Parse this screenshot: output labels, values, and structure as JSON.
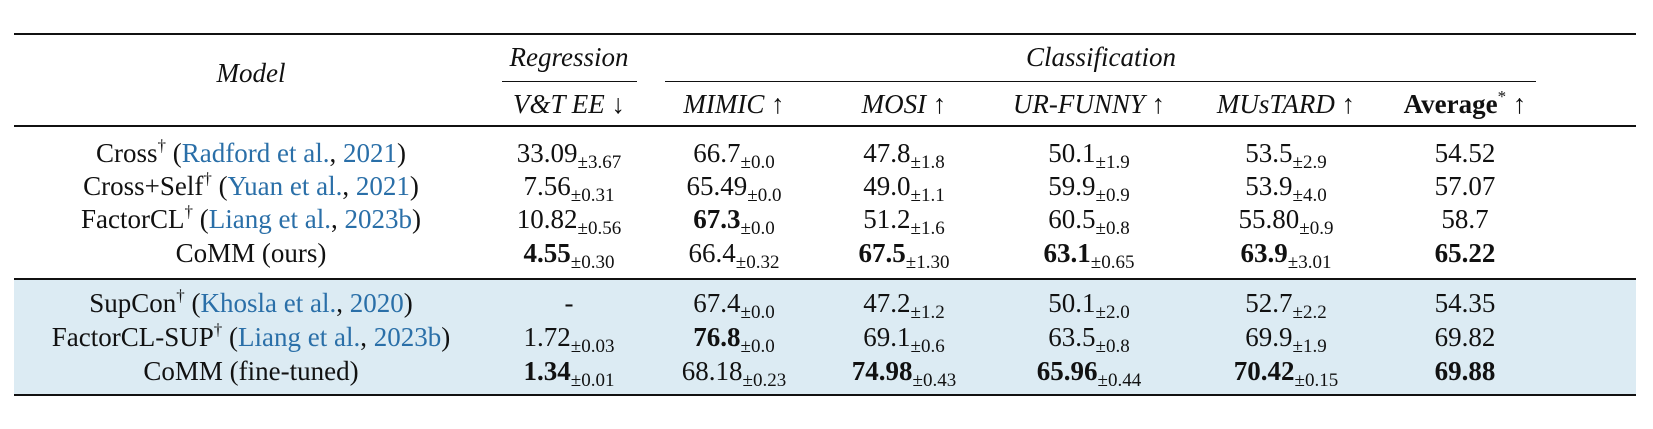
{
  "header": {
    "model": "Model",
    "regression": "Regression",
    "classification": "Classification",
    "columns": [
      "V&T EE ↓",
      "MIMIC ↑",
      "MOSI ↑",
      "UR-FUNNY ↑",
      "MUsTARD ↑"
    ],
    "average": "Average",
    "average_mark": "*",
    "average_arrow": " ↑"
  },
  "group1": [
    {
      "name": "Cross",
      "dagger": "†",
      "cite_author": "Radford et al.",
      "cite_year": "2021",
      "cells": [
        {
          "v": "33.09",
          "s": "±3.67",
          "b": false
        },
        {
          "v": "66.7",
          "s": "±0.0",
          "b": false
        },
        {
          "v": "47.8",
          "s": "±1.8",
          "b": false
        },
        {
          "v": "50.1",
          "s": "±1.9",
          "b": false
        },
        {
          "v": "53.5",
          "s": "±2.9",
          "b": false
        }
      ],
      "avg": "54.52",
      "avg_bold": false
    },
    {
      "name": "Cross+Self",
      "dagger": "†",
      "cite_author": "Yuan et al.",
      "cite_year": "2021",
      "cells": [
        {
          "v": "7.56",
          "s": "±0.31",
          "b": false
        },
        {
          "v": "65.49",
          "s": "±0.0",
          "b": false
        },
        {
          "v": "49.0",
          "s": "±1.1",
          "b": false
        },
        {
          "v": "59.9",
          "s": "±0.9",
          "b": false
        },
        {
          "v": "53.9",
          "s": "±4.0",
          "b": false
        }
      ],
      "avg": "57.07",
      "avg_bold": false
    },
    {
      "name": "FactorCL",
      "dagger": "†",
      "cite_author": "Liang et al.",
      "cite_year": "2023b",
      "cells": [
        {
          "v": "10.82",
          "s": "±0.56",
          "b": false
        },
        {
          "v": "67.3",
          "s": "±0.0",
          "b": true
        },
        {
          "v": "51.2",
          "s": "±1.6",
          "b": false
        },
        {
          "v": "60.5",
          "s": "±0.8",
          "b": false
        },
        {
          "v": "55.80",
          "s": "±0.9",
          "b": false
        }
      ],
      "avg": "58.7",
      "avg_bold": false
    },
    {
      "name": "CoMM (ours)",
      "dagger": "",
      "cite_author": "",
      "cite_year": "",
      "cells": [
        {
          "v": "4.55",
          "s": "±0.30",
          "b": true
        },
        {
          "v": "66.4",
          "s": "±0.32",
          "b": false
        },
        {
          "v": "67.5",
          "s": "±1.30",
          "b": true
        },
        {
          "v": "63.1",
          "s": "±0.65",
          "b": true
        },
        {
          "v": "63.9",
          "s": "±3.01",
          "b": true
        }
      ],
      "avg": "65.22",
      "avg_bold": true
    }
  ],
  "group2": [
    {
      "name": "SupCon",
      "dagger": "†",
      "cite_author": "Khosla et al.",
      "cite_year": "2020",
      "cells": [
        {
          "v": "-",
          "s": "",
          "b": false
        },
        {
          "v": "67.4",
          "s": "±0.0",
          "b": false
        },
        {
          "v": "47.2",
          "s": "±1.2",
          "b": false
        },
        {
          "v": "50.1",
          "s": "±2.0",
          "b": false
        },
        {
          "v": "52.7",
          "s": "±2.2",
          "b": false
        }
      ],
      "avg": "54.35",
      "avg_bold": false
    },
    {
      "name": "FactorCL-SUP",
      "dagger": "†",
      "cite_author": "Liang et al.",
      "cite_year": "2023b",
      "cells": [
        {
          "v": "1.72",
          "s": "±0.03",
          "b": false
        },
        {
          "v": "76.8",
          "s": "±0.0",
          "b": true
        },
        {
          "v": "69.1",
          "s": "±0.6",
          "b": false
        },
        {
          "v": "63.5",
          "s": "±0.8",
          "b": false
        },
        {
          "v": "69.9",
          "s": "±1.9",
          "b": false
        }
      ],
      "avg": "69.82",
      "avg_bold": false
    },
    {
      "name": "CoMM (fine-tuned)",
      "dagger": "",
      "cite_author": "",
      "cite_year": "",
      "cells": [
        {
          "v": "1.34",
          "s": "±0.01",
          "b": true
        },
        {
          "v": "68.18",
          "s": "±0.23",
          "b": false
        },
        {
          "v": "74.98",
          "s": "±0.43",
          "b": true
        },
        {
          "v": "65.96",
          "s": "±0.44",
          "b": true
        },
        {
          "v": "70.42",
          "s": "±0.15",
          "b": true
        }
      ],
      "avg": "69.88",
      "avg_bold": true
    }
  ]
}
